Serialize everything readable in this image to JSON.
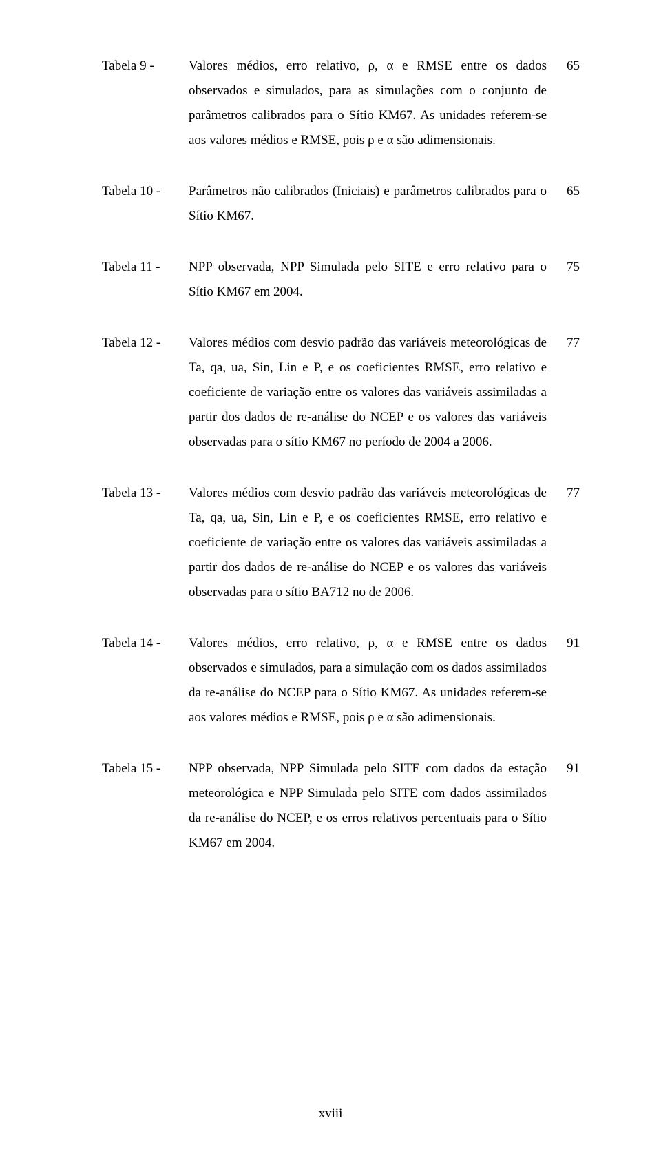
{
  "entries": [
    {
      "label": "Tabela 9 -",
      "desc": "Valores médios, erro relativo, ρ, α e RMSE entre os dados observados e simulados, para as simulações com o conjunto de parâmetros calibrados para o Sítio KM67. As unidades referem-se aos valores médios e RMSE, pois ρ e α são adimensionais.",
      "page": "65"
    },
    {
      "label": "Tabela 10 -",
      "desc": "Parâmetros não calibrados (Iniciais) e parâmetros calibrados para o Sítio KM67.",
      "page": "65"
    },
    {
      "label": "Tabela 11 -",
      "desc": "NPP observada, NPP Simulada pelo SITE e erro relativo para o Sítio KM67 em 2004.",
      "page": "75"
    },
    {
      "label": "Tabela 12 -",
      "desc": "Valores médios com desvio padrão das variáveis meteorológicas de Ta, qa, ua, Sin, Lin e P, e os coeficientes RMSE, erro relativo e coeficiente de variação entre os valores das variáveis assimiladas a partir dos dados de re-análise do NCEP e os valores das variáveis observadas para o sítio KM67 no período de 2004 a 2006.",
      "page": "77"
    },
    {
      "label": "Tabela 13 -",
      "desc": "Valores médios com desvio padrão das variáveis meteorológicas de Ta, qa, ua, Sin, Lin e P, e os coeficientes RMSE, erro relativo e coeficiente de variação entre os valores das variáveis assimiladas a partir dos dados de re-análise do NCEP e os valores das variáveis observadas para o sítio BA712 no de 2006.",
      "page": "77"
    },
    {
      "label": "Tabela 14 -",
      "desc": "Valores médios, erro relativo, ρ, α e RMSE entre os dados observados e simulados, para a simulação com os dados assimilados da re-análise do NCEP para o Sítio KM67. As unidades referem-se aos valores médios e RMSE, pois ρ e α são adimensionais.",
      "page": "91"
    },
    {
      "label": "Tabela 15 -",
      "desc": "NPP observada, NPP Simulada pelo SITE com dados da estação meteorológica e NPP Simulada pelo SITE com dados assimilados da re-análise do NCEP, e os erros relativos percentuais para o Sítio KM67 em 2004.",
      "page": "91"
    }
  ],
  "footer": "xviii"
}
